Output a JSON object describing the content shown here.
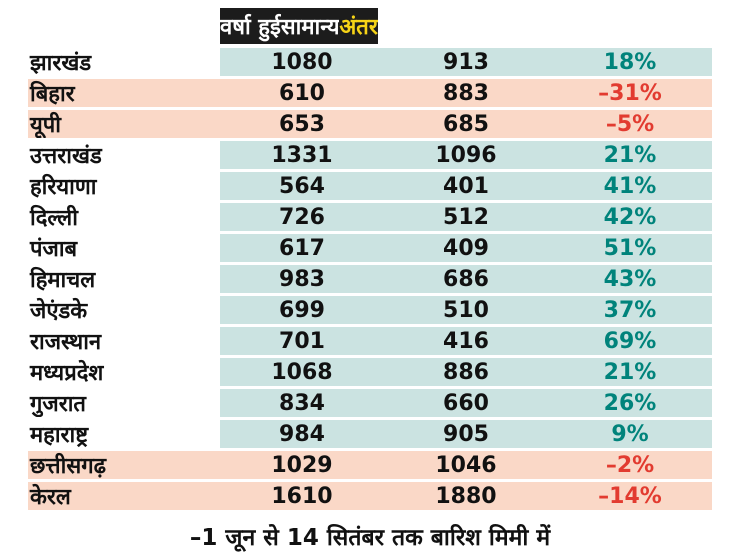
{
  "chart_data": {
    "type": "table",
    "title": "",
    "headers": [
      "वर्षा हुई",
      "सामान्य",
      "अंतर"
    ],
    "rows": [
      {
        "state": "झारखंड",
        "rainfall": "1080",
        "normal": "913",
        "diff": "18%",
        "diff_value": 18,
        "negative": false
      },
      {
        "state": "बिहार",
        "rainfall": "610",
        "normal": "883",
        "diff": "–31%",
        "diff_value": -31,
        "negative": true
      },
      {
        "state": "यूपी",
        "rainfall": "653",
        "normal": "685",
        "diff": "–5%",
        "diff_value": -5,
        "negative": true
      },
      {
        "state": "उत्तराखंड",
        "rainfall": "1331",
        "normal": "1096",
        "diff": "21%",
        "diff_value": 21,
        "negative": false
      },
      {
        "state": "हरियाणा",
        "rainfall": "564",
        "normal": "401",
        "diff": "41%",
        "diff_value": 41,
        "negative": false
      },
      {
        "state": "दिल्ली",
        "rainfall": "726",
        "normal": "512",
        "diff": "42%",
        "diff_value": 42,
        "negative": false
      },
      {
        "state": "पंजाब",
        "rainfall": "617",
        "normal": "409",
        "diff": "51%",
        "diff_value": 51,
        "negative": false
      },
      {
        "state": "हिमाचल",
        "rainfall": "983",
        "normal": "686",
        "diff": "43%",
        "diff_value": 43,
        "negative": false
      },
      {
        "state": "जेएंडके",
        "rainfall": "699",
        "normal": "510",
        "diff": "37%",
        "diff_value": 37,
        "negative": false
      },
      {
        "state": "राजस्थान",
        "rainfall": "701",
        "normal": "416",
        "diff": "69%",
        "diff_value": 69,
        "negative": false
      },
      {
        "state": "मध्यप्रदेश",
        "rainfall": "1068",
        "normal": "886",
        "diff": "21%",
        "diff_value": 21,
        "negative": false
      },
      {
        "state": "गुजरात",
        "rainfall": "834",
        "normal": "660",
        "diff": "26%",
        "diff_value": 26,
        "negative": false
      },
      {
        "state": "महाराष्ट्र",
        "rainfall": "984",
        "normal": "905",
        "diff": "9%",
        "diff_value": 9,
        "negative": false
      },
      {
        "state": "छत्तीसगढ़",
        "rainfall": "1029",
        "normal": "1046",
        "diff": "–2%",
        "diff_value": -2,
        "negative": true
      },
      {
        "state": "केरल",
        "rainfall": "1610",
        "normal": "1880",
        "diff": "–14%",
        "diff_value": -14,
        "negative": true
      }
    ],
    "footnote": "–1 जून से 14 सितंबर तक बारिश मिमी में",
    "legend": {
      "positive_text_color": "#00837b",
      "negative_text_color": "#e23b30",
      "positive_row_bg": "#cbe3e1",
      "negative_row_bg": "#fad8c7",
      "header_bg": "#1c1c1c",
      "header_diff_color": "#f7d417"
    }
  }
}
